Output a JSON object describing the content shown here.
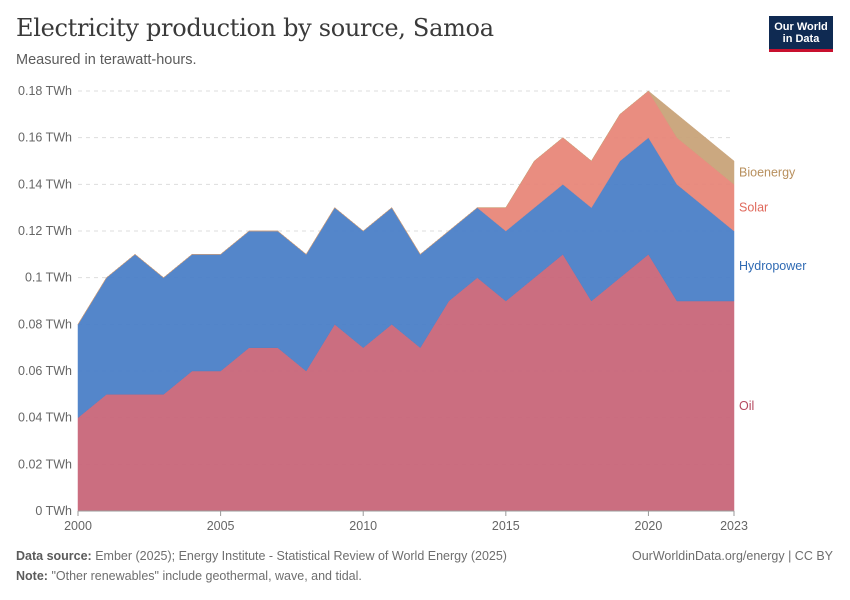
{
  "header": {
    "title": "Electricity production by source, Samoa",
    "subtitle": "Measured in terawatt-hours.",
    "logo_line1": "Our World",
    "logo_line2": "in Data"
  },
  "footer": {
    "source_label": "Data source:",
    "source_text": "Ember (2025); Energy Institute - Statistical Review of World Energy (2025)",
    "note_label": "Note:",
    "note_text": "\"Other renewables\" include geothermal, wave, and tidal.",
    "attribution": "OurWorldinData.org/energy | CC BY"
  },
  "chart_data": {
    "type": "area",
    "stacked": true,
    "title": "Electricity production by source, Samoa",
    "ylabel": "TWh",
    "ylim": [
      0,
      0.18
    ],
    "grid": true,
    "y_ticks": [
      {
        "value": 0,
        "label": "0 TWh"
      },
      {
        "value": 0.02,
        "label": "0.02 TWh"
      },
      {
        "value": 0.04,
        "label": "0.04 TWh"
      },
      {
        "value": 0.06,
        "label": "0.06 TWh"
      },
      {
        "value": 0.08,
        "label": "0.08 TWh"
      },
      {
        "value": 0.1,
        "label": "0.1 TWh"
      },
      {
        "value": 0.12,
        "label": "0.12 TWh"
      },
      {
        "value": 0.14,
        "label": "0.14 TWh"
      },
      {
        "value": 0.16,
        "label": "0.16 TWh"
      },
      {
        "value": 0.18,
        "label": "0.18 TWh"
      }
    ],
    "x_ticks": [
      {
        "value": 2000,
        "label": "2000"
      },
      {
        "value": 2005,
        "label": "2005"
      },
      {
        "value": 2010,
        "label": "2010"
      },
      {
        "value": 2015,
        "label": "2015"
      },
      {
        "value": 2020,
        "label": "2020"
      },
      {
        "value": 2023,
        "label": "2023"
      }
    ],
    "xlim": [
      2000,
      2023
    ],
    "x": [
      2000,
      2001,
      2002,
      2003,
      2004,
      2005,
      2006,
      2007,
      2008,
      2009,
      2010,
      2011,
      2012,
      2013,
      2014,
      2015,
      2016,
      2017,
      2018,
      2019,
      2020,
      2021,
      2022,
      2023
    ],
    "series": [
      {
        "name": "Oil",
        "color": "#c9677a",
        "values": [
          0.04,
          0.05,
          0.05,
          0.05,
          0.06,
          0.06,
          0.07,
          0.07,
          0.06,
          0.08,
          0.07,
          0.08,
          0.07,
          0.09,
          0.1,
          0.09,
          0.1,
          0.11,
          0.09,
          0.1,
          0.11,
          0.09,
          0.09,
          0.09
        ]
      },
      {
        "name": "Hydropower",
        "color": "#4b80c8",
        "values": [
          0.04,
          0.05,
          0.06,
          0.05,
          0.05,
          0.05,
          0.05,
          0.05,
          0.05,
          0.05,
          0.05,
          0.05,
          0.04,
          0.03,
          0.03,
          0.03,
          0.03,
          0.03,
          0.04,
          0.05,
          0.05,
          0.05,
          0.04,
          0.03
        ]
      },
      {
        "name": "Solar",
        "color": "#e8877a",
        "values": [
          0,
          0,
          0,
          0,
          0,
          0,
          0,
          0,
          0,
          0,
          0,
          0,
          0,
          0,
          0,
          0.01,
          0.02,
          0.02,
          0.02,
          0.02,
          0.02,
          0.02,
          0.02,
          0.02
        ]
      },
      {
        "name": "Bioenergy",
        "color": "#c9a47a",
        "values": [
          0,
          0,
          0,
          0,
          0,
          0,
          0,
          0,
          0,
          0,
          0,
          0,
          0,
          0,
          0,
          0,
          0,
          0,
          0,
          0,
          0,
          0.01,
          0.01,
          0.01
        ]
      }
    ],
    "legend_position": "right, inline at series end"
  }
}
